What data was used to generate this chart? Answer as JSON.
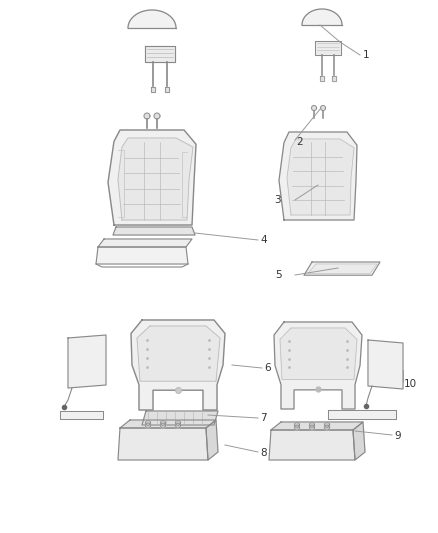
{
  "background_color": "#ffffff",
  "line_color": "#888888",
  "light_line_color": "#bbbbbb",
  "dark_line_color": "#555555",
  "callout_color": "#333333",
  "callout_line_color": "#999999",
  "figsize": [
    4.38,
    5.33
  ],
  "dpi": 100
}
